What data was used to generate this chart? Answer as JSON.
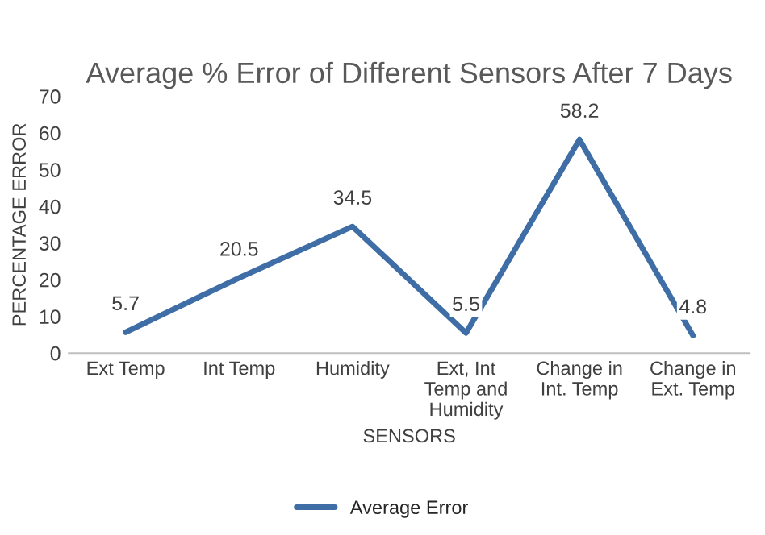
{
  "chart_data": {
    "type": "line",
    "title": "Average % Error of Different Sensors After 7 Days",
    "categories": [
      "Ext Temp",
      "Int Temp",
      "Humidity",
      "Ext, Int\nTemp and\nHumidity",
      "Change in\nInt. Temp",
      "Change in\nExt. Temp"
    ],
    "series": [
      {
        "name": "Average Error",
        "color": "#3f6ea6",
        "values": [
          5.7,
          20.5,
          34.5,
          5.5,
          58.2,
          4.8
        ]
      }
    ],
    "xlabel": "SENSORS",
    "ylabel": "PERCENTAGE ERROR",
    "ylim": [
      0,
      70
    ],
    "yticks": [
      0,
      10,
      20,
      30,
      40,
      50,
      60,
      70
    ],
    "data_labels": true,
    "legend": "bottom",
    "grid": false,
    "marker": "none",
    "line_style": "solid"
  }
}
